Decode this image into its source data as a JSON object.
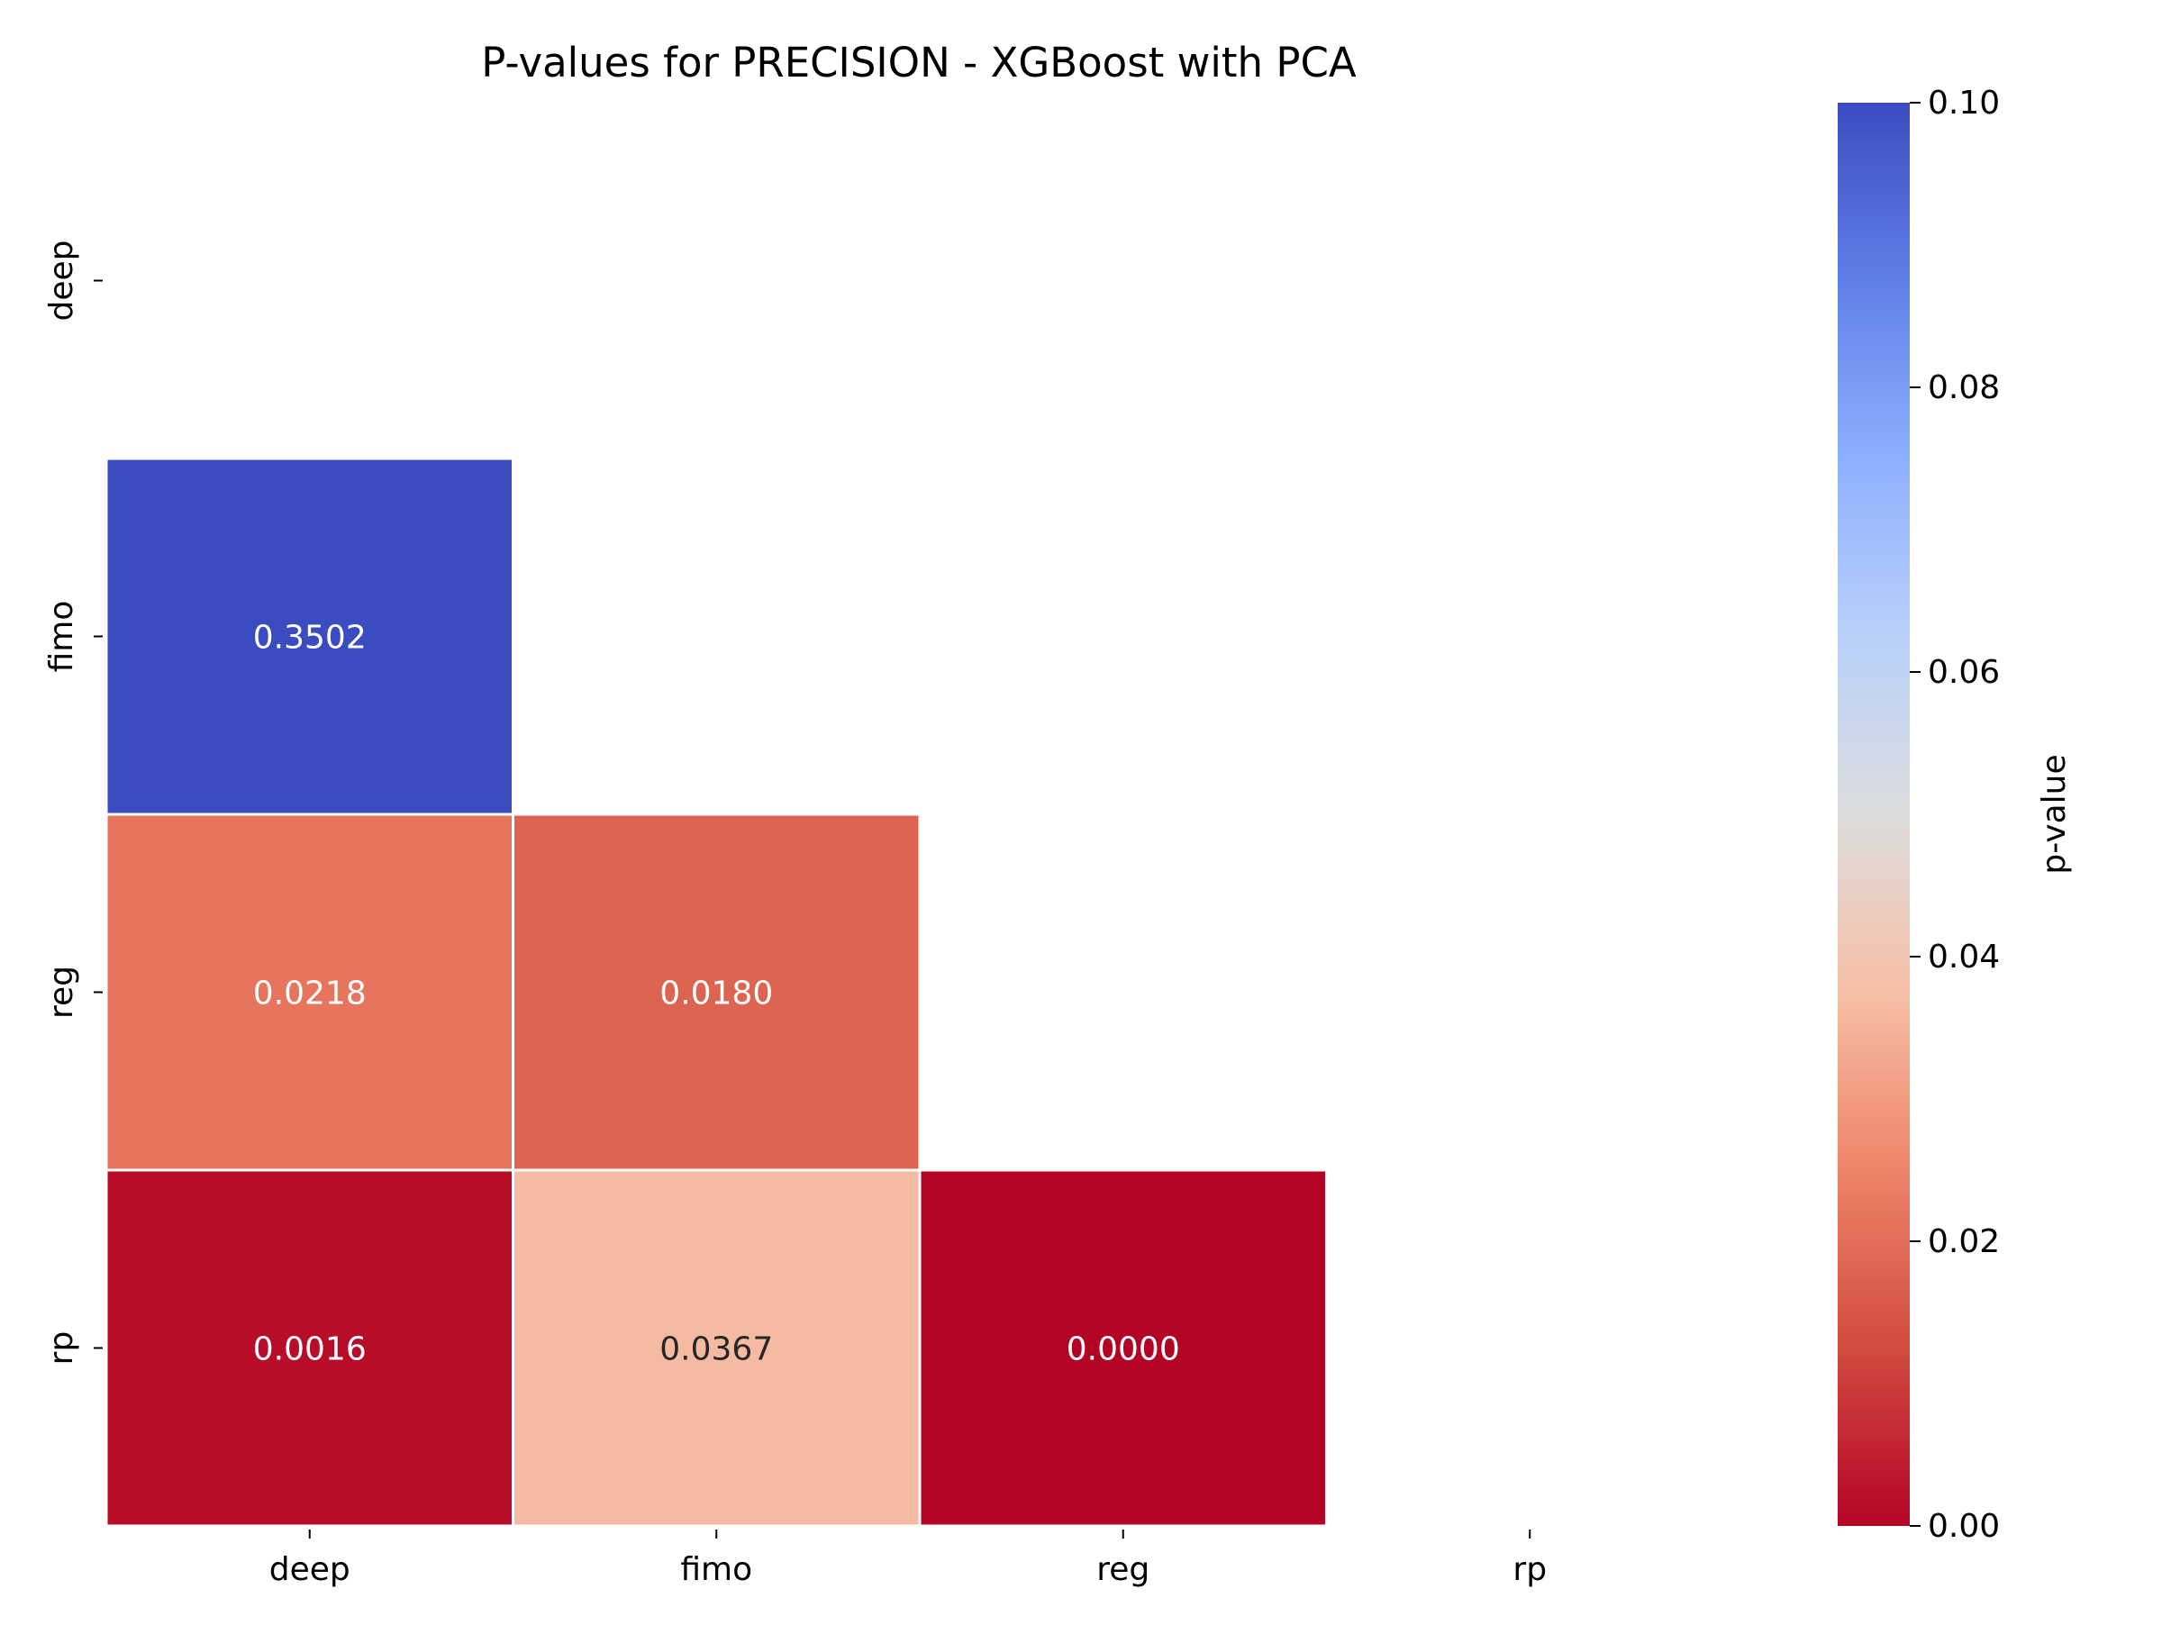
{
  "chart_data": {
    "type": "heatmap",
    "title": "P-values for PRECISION - XGBoost with PCA",
    "xlabel": "",
    "ylabel": "",
    "x_categories": [
      "deep",
      "fimo",
      "reg",
      "rp"
    ],
    "y_categories": [
      "deep",
      "fimo",
      "reg",
      "rp"
    ],
    "cells": [
      {
        "row": "fimo",
        "col": "deep",
        "value": 0.3502,
        "label": "0.3502"
      },
      {
        "row": "reg",
        "col": "deep",
        "value": 0.0218,
        "label": "0.0218"
      },
      {
        "row": "reg",
        "col": "fimo",
        "value": 0.018,
        "label": "0.0180"
      },
      {
        "row": "rp",
        "col": "deep",
        "value": 0.0016,
        "label": "0.0016"
      },
      {
        "row": "rp",
        "col": "fimo",
        "value": 0.0367,
        "label": "0.0367"
      },
      {
        "row": "rp",
        "col": "reg",
        "value": 0.0,
        "label": "0.0000"
      }
    ],
    "mask": "upper-triangle-and-diagonal",
    "colormap": "coolwarm_r",
    "vmin": 0.0,
    "vmax": 0.1,
    "colorbar": {
      "label": "p-value",
      "ticks": [
        "0.00",
        "0.02",
        "0.04",
        "0.06",
        "0.08",
        "0.10"
      ]
    },
    "grid": false,
    "legend": "colorbar-right"
  }
}
